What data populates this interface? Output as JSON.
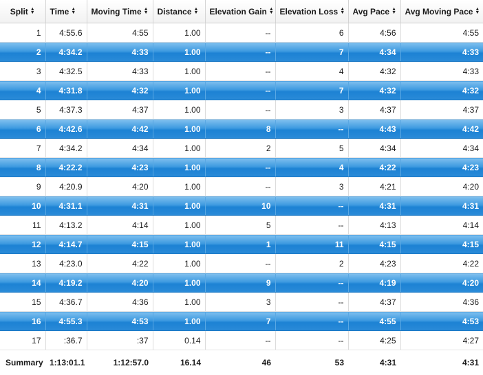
{
  "columns": [
    {
      "label": "Split"
    },
    {
      "label": "Time"
    },
    {
      "label": "Moving Time"
    },
    {
      "label": "Distance"
    },
    {
      "label": "Elevation Gain"
    },
    {
      "label": "Elevation Loss"
    },
    {
      "label": "Avg Pace"
    },
    {
      "label": "Avg Moving Pace"
    }
  ],
  "sort_icon": "sort-updown-icon",
  "rows": [
    {
      "split": "1",
      "time": "4:55.6",
      "moving_time": "4:55",
      "distance": "1.00",
      "elev_gain": "--",
      "elev_loss": "6",
      "avg_pace": "4:56",
      "avg_moving_pace": "4:55"
    },
    {
      "split": "2",
      "time": "4:34.2",
      "moving_time": "4:33",
      "distance": "1.00",
      "elev_gain": "--",
      "elev_loss": "7",
      "avg_pace": "4:34",
      "avg_moving_pace": "4:33"
    },
    {
      "split": "3",
      "time": "4:32.5",
      "moving_time": "4:33",
      "distance": "1.00",
      "elev_gain": "--",
      "elev_loss": "4",
      "avg_pace": "4:32",
      "avg_moving_pace": "4:33"
    },
    {
      "split": "4",
      "time": "4:31.8",
      "moving_time": "4:32",
      "distance": "1.00",
      "elev_gain": "--",
      "elev_loss": "7",
      "avg_pace": "4:32",
      "avg_moving_pace": "4:32"
    },
    {
      "split": "5",
      "time": "4:37.3",
      "moving_time": "4:37",
      "distance": "1.00",
      "elev_gain": "--",
      "elev_loss": "3",
      "avg_pace": "4:37",
      "avg_moving_pace": "4:37"
    },
    {
      "split": "6",
      "time": "4:42.6",
      "moving_time": "4:42",
      "distance": "1.00",
      "elev_gain": "8",
      "elev_loss": "--",
      "avg_pace": "4:43",
      "avg_moving_pace": "4:42"
    },
    {
      "split": "7",
      "time": "4:34.2",
      "moving_time": "4:34",
      "distance": "1.00",
      "elev_gain": "2",
      "elev_loss": "5",
      "avg_pace": "4:34",
      "avg_moving_pace": "4:34"
    },
    {
      "split": "8",
      "time": "4:22.2",
      "moving_time": "4:23",
      "distance": "1.00",
      "elev_gain": "--",
      "elev_loss": "4",
      "avg_pace": "4:22",
      "avg_moving_pace": "4:23"
    },
    {
      "split": "9",
      "time": "4:20.9",
      "moving_time": "4:20",
      "distance": "1.00",
      "elev_gain": "--",
      "elev_loss": "3",
      "avg_pace": "4:21",
      "avg_moving_pace": "4:20"
    },
    {
      "split": "10",
      "time": "4:31.1",
      "moving_time": "4:31",
      "distance": "1.00",
      "elev_gain": "10",
      "elev_loss": "--",
      "avg_pace": "4:31",
      "avg_moving_pace": "4:31"
    },
    {
      "split": "11",
      "time": "4:13.2",
      "moving_time": "4:14",
      "distance": "1.00",
      "elev_gain": "5",
      "elev_loss": "--",
      "avg_pace": "4:13",
      "avg_moving_pace": "4:14"
    },
    {
      "split": "12",
      "time": "4:14.7",
      "moving_time": "4:15",
      "distance": "1.00",
      "elev_gain": "1",
      "elev_loss": "11",
      "avg_pace": "4:15",
      "avg_moving_pace": "4:15"
    },
    {
      "split": "13",
      "time": "4:23.0",
      "moving_time": "4:22",
      "distance": "1.00",
      "elev_gain": "--",
      "elev_loss": "2",
      "avg_pace": "4:23",
      "avg_moving_pace": "4:22"
    },
    {
      "split": "14",
      "time": "4:19.2",
      "moving_time": "4:20",
      "distance": "1.00",
      "elev_gain": "9",
      "elev_loss": "--",
      "avg_pace": "4:19",
      "avg_moving_pace": "4:20"
    },
    {
      "split": "15",
      "time": "4:36.7",
      "moving_time": "4:36",
      "distance": "1.00",
      "elev_gain": "3",
      "elev_loss": "--",
      "avg_pace": "4:37",
      "avg_moving_pace": "4:36"
    },
    {
      "split": "16",
      "time": "4:55.3",
      "moving_time": "4:53",
      "distance": "1.00",
      "elev_gain": "7",
      "elev_loss": "--",
      "avg_pace": "4:55",
      "avg_moving_pace": "4:53"
    },
    {
      "split": "17",
      "time": ":36.7",
      "moving_time": ":37",
      "distance": "0.14",
      "elev_gain": "--",
      "elev_loss": "--",
      "avg_pace": "4:25",
      "avg_moving_pace": "4:27"
    }
  ],
  "summary": {
    "label": "Summary",
    "time": "1:13:01.1",
    "moving_time": "1:12:57.0",
    "distance": "16.14",
    "elev_gain": "46",
    "elev_loss": "53",
    "avg_pace": "4:31",
    "avg_moving_pace": "4:31"
  },
  "colors": {
    "highlight_row": "#2a8bd8",
    "highlight_text": "#ffffff"
  }
}
